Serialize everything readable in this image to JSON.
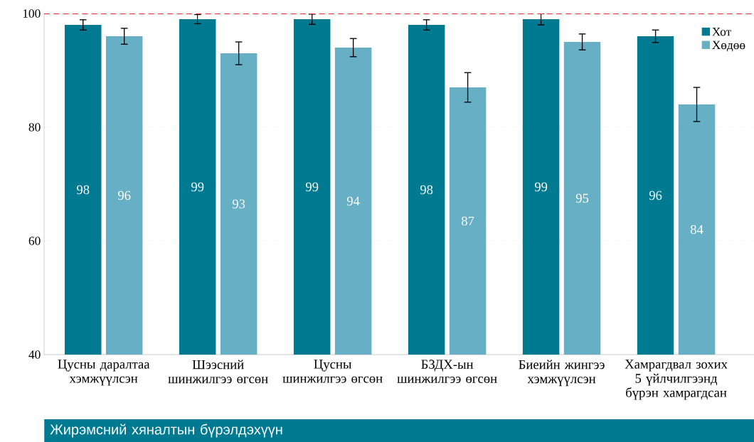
{
  "chart_data": {
    "type": "bar",
    "categories": [
      "Цусны даралтаа хэмжүүлсэн",
      "Шээсний шинжилгээ өгсөн",
      "Цусны шинжилгээ өгсөн",
      "БЗДХ-ын шинжилгээ өгсөн",
      "Биеийн жингээ хэмжүүлсэн",
      "Хамрагдвал зохих 5 үйлчилгээнд бүрэн хамрагдсан"
    ],
    "xlabel": "Жирэмсний хяналтын бүрэлдэхүүн",
    "series": [
      {
        "name": "Хот",
        "color": "#007a91",
        "values": [
          98,
          99,
          99,
          98,
          99,
          96
        ],
        "errors": [
          0.9,
          0.8,
          0.9,
          0.9,
          1,
          1.1
        ]
      },
      {
        "name": "Хөдөө",
        "color": "#66afc4",
        "values": [
          96,
          93,
          94,
          87,
          95,
          84
        ],
        "errors": [
          1.4,
          2,
          1.6,
          2.6,
          1.4,
          3
        ]
      }
    ],
    "ylim": [
      40,
      100
    ],
    "yticks": [
      40,
      60,
      80,
      100
    ],
    "grid": "y",
    "legend": "top right",
    "data_labels": true,
    "ref_lines": [
      {
        "axis": "y",
        "value": 100,
        "color": "#e8262b",
        "line_style": "dashed"
      }
    ]
  }
}
